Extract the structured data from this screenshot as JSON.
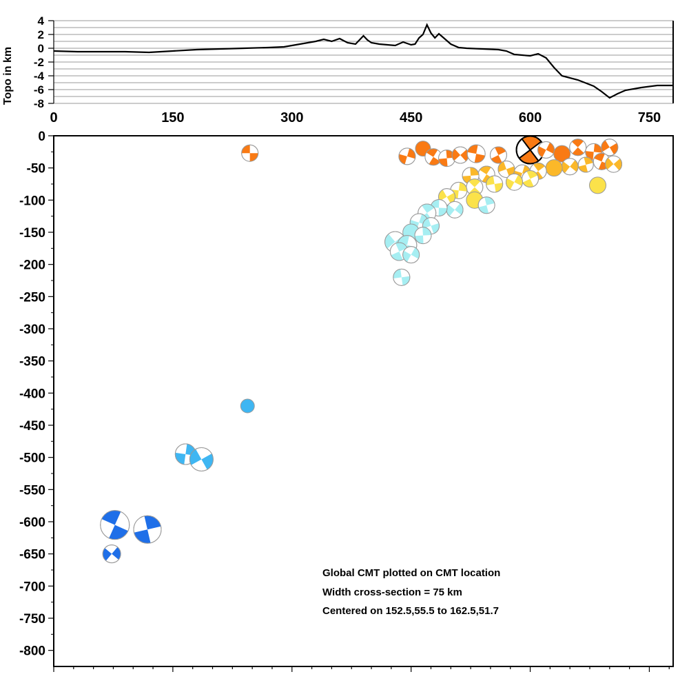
{
  "topo": {
    "ylabel": "Topo in km",
    "y_ticks": [
      "4",
      "2",
      "0",
      "-2",
      "-4",
      "-6",
      "-8"
    ],
    "x_ticks": [
      "0",
      "150",
      "300",
      "450",
      "600",
      "750"
    ],
    "ylim": [
      -8,
      4
    ],
    "xlim": [
      0,
      780
    ]
  },
  "section": {
    "y_ticks": [
      "0",
      "-50",
      "-100",
      "-150",
      "-200",
      "-250",
      "-300",
      "-350",
      "-400",
      "-450",
      "-500",
      "-550",
      "-600",
      "-650",
      "-700",
      "-750",
      "-800"
    ],
    "ylim": [
      -825,
      0
    ],
    "xlim": [
      0,
      780
    ]
  },
  "annotations": {
    "line1": "Global CMT plotted on CMT location",
    "line2": "Width cross-section = 75 km",
    "line3": "Centered on 152.5,55.5 to 162.5,51.7"
  },
  "colors": {
    "shallow": "#f97a14",
    "mid_orange": "#fbb829",
    "yellow": "#fbe24a",
    "cyan": "#a6eef2",
    "light_blue": "#3fb6f2",
    "deep_blue": "#1f6fe8"
  },
  "chart_data": [
    {
      "type": "line",
      "name_hint": "topography profile",
      "ylabel": "Topo in km",
      "xlim": [
        0,
        780
      ],
      "ylim": [
        -8,
        4
      ],
      "x": [
        0,
        30,
        60,
        90,
        120,
        150,
        180,
        210,
        240,
        270,
        290,
        300,
        310,
        320,
        330,
        340,
        350,
        360,
        370,
        380,
        385,
        390,
        395,
        400,
        410,
        420,
        430,
        440,
        450,
        455,
        460,
        465,
        470,
        475,
        480,
        485,
        490,
        500,
        510,
        520,
        540,
        560,
        570,
        580,
        590,
        600,
        610,
        620,
        630,
        640,
        660,
        680,
        690,
        700,
        710,
        720,
        740,
        760,
        780
      ],
      "y": [
        -0.4,
        -0.5,
        -0.5,
        -0.5,
        -0.6,
        -0.4,
        -0.2,
        -0.1,
        0.0,
        0.1,
        0.2,
        0.4,
        0.6,
        0.8,
        1.0,
        1.3,
        1.0,
        1.4,
        0.8,
        0.6,
        1.2,
        1.8,
        1.2,
        0.8,
        0.6,
        0.5,
        0.4,
        0.9,
        0.5,
        0.6,
        1.5,
        2.0,
        3.4,
        2.2,
        1.5,
        2.1,
        1.6,
        0.6,
        0.1,
        0.0,
        -0.1,
        -0.2,
        -0.4,
        -0.9,
        -1.0,
        -1.1,
        -0.8,
        -1.4,
        -2.8,
        -4.0,
        -4.6,
        -5.5,
        -6.3,
        -7.2,
        -6.6,
        -6.1,
        -5.7,
        -5.4,
        -5.4
      ],
      "grid": true
    },
    {
      "type": "scatter",
      "description": "focal mechanisms (beachballs) at CMT location",
      "xlim": [
        0,
        780
      ],
      "ylim": [
        -825,
        0
      ],
      "points": [
        {
          "x": 247,
          "y": -27,
          "r": 12,
          "color": "#f97a14"
        },
        {
          "x": 600,
          "y": -22,
          "r": 20,
          "color": "#f97a14",
          "highlight": true
        },
        {
          "x": 445,
          "y": -32,
          "r": 12,
          "color": "#f97a14"
        },
        {
          "x": 465,
          "y": -20,
          "r": 11,
          "color": "#f97a14"
        },
        {
          "x": 478,
          "y": -33,
          "r": 12,
          "color": "#f97a14"
        },
        {
          "x": 495,
          "y": -35,
          "r": 12,
          "color": "#f97a14"
        },
        {
          "x": 512,
          "y": -30,
          "r": 12,
          "color": "#f97a14"
        },
        {
          "x": 532,
          "y": -28,
          "r": 13,
          "color": "#f97a14"
        },
        {
          "x": 560,
          "y": -30,
          "r": 12,
          "color": "#f97a14"
        },
        {
          "x": 620,
          "y": -22,
          "r": 12,
          "color": "#f97a14"
        },
        {
          "x": 640,
          "y": -28,
          "r": 12,
          "color": "#f97a14"
        },
        {
          "x": 660,
          "y": -18,
          "r": 12,
          "color": "#f97a14"
        },
        {
          "x": 680,
          "y": -25,
          "r": 12,
          "color": "#f97a14"
        },
        {
          "x": 700,
          "y": -18,
          "r": 12,
          "color": "#f97a14"
        },
        {
          "x": 690,
          "y": -40,
          "r": 12,
          "color": "#f97a14"
        },
        {
          "x": 670,
          "y": -45,
          "r": 11,
          "color": "#fbb829"
        },
        {
          "x": 650,
          "y": -48,
          "r": 12,
          "color": "#fbb829"
        },
        {
          "x": 630,
          "y": -50,
          "r": 12,
          "color": "#fbb829"
        },
        {
          "x": 610,
          "y": -55,
          "r": 12,
          "color": "#fbb829"
        },
        {
          "x": 590,
          "y": -58,
          "r": 12,
          "color": "#fbb829"
        },
        {
          "x": 570,
          "y": -52,
          "r": 12,
          "color": "#fbb829"
        },
        {
          "x": 545,
          "y": -60,
          "r": 12,
          "color": "#fbb829"
        },
        {
          "x": 525,
          "y": -62,
          "r": 12,
          "color": "#fbb829"
        },
        {
          "x": 705,
          "y": -44,
          "r": 12,
          "color": "#fbb829"
        },
        {
          "x": 685,
          "y": -77,
          "r": 12,
          "color": "#fbe24a"
        },
        {
          "x": 600,
          "y": -67,
          "r": 12,
          "color": "#fbe24a"
        },
        {
          "x": 580,
          "y": -72,
          "r": 12,
          "color": "#fbe24a"
        },
        {
          "x": 555,
          "y": -75,
          "r": 12,
          "color": "#fbe24a"
        },
        {
          "x": 530,
          "y": -80,
          "r": 12,
          "color": "#fbe24a"
        },
        {
          "x": 510,
          "y": -85,
          "r": 12,
          "color": "#fbe24a"
        },
        {
          "x": 495,
          "y": -95,
          "r": 12,
          "color": "#fbe24a"
        },
        {
          "x": 530,
          "y": -100,
          "r": 12,
          "color": "#fbe24a"
        },
        {
          "x": 545,
          "y": -108,
          "r": 12,
          "color": "#a6eef2"
        },
        {
          "x": 505,
          "y": -115,
          "r": 12,
          "color": "#a6eef2"
        },
        {
          "x": 485,
          "y": -112,
          "r": 12,
          "color": "#a6eef2"
        },
        {
          "x": 470,
          "y": -120,
          "r": 13,
          "color": "#a6eef2"
        },
        {
          "x": 460,
          "y": -135,
          "r": 13,
          "color": "#a6eef2"
        },
        {
          "x": 475,
          "y": -140,
          "r": 12,
          "color": "#a6eef2"
        },
        {
          "x": 450,
          "y": -150,
          "r": 12,
          "color": "#a6eef2"
        },
        {
          "x": 465,
          "y": -155,
          "r": 12,
          "color": "#a6eef2"
        },
        {
          "x": 430,
          "y": -165,
          "r": 15,
          "color": "#a6eef2"
        },
        {
          "x": 445,
          "y": -170,
          "r": 14,
          "color": "#a6eef2"
        },
        {
          "x": 435,
          "y": -180,
          "r": 13,
          "color": "#a6eef2"
        },
        {
          "x": 450,
          "y": -185,
          "r": 12,
          "color": "#a6eef2"
        },
        {
          "x": 438,
          "y": -220,
          "r": 12,
          "color": "#a6eef2"
        },
        {
          "x": 244,
          "y": -420,
          "r": 10,
          "color": "#3fb6f2"
        },
        {
          "x": 166,
          "y": -495,
          "r": 15,
          "color": "#3fb6f2"
        },
        {
          "x": 186,
          "y": -503,
          "r": 17,
          "color": "#3fb6f2"
        },
        {
          "x": 77,
          "y": -605,
          "r": 21,
          "color": "#1f6fe8"
        },
        {
          "x": 118,
          "y": -612,
          "r": 20,
          "color": "#1f6fe8"
        },
        {
          "x": 73,
          "y": -650,
          "r": 13,
          "color": "#1f6fe8"
        }
      ]
    }
  ]
}
